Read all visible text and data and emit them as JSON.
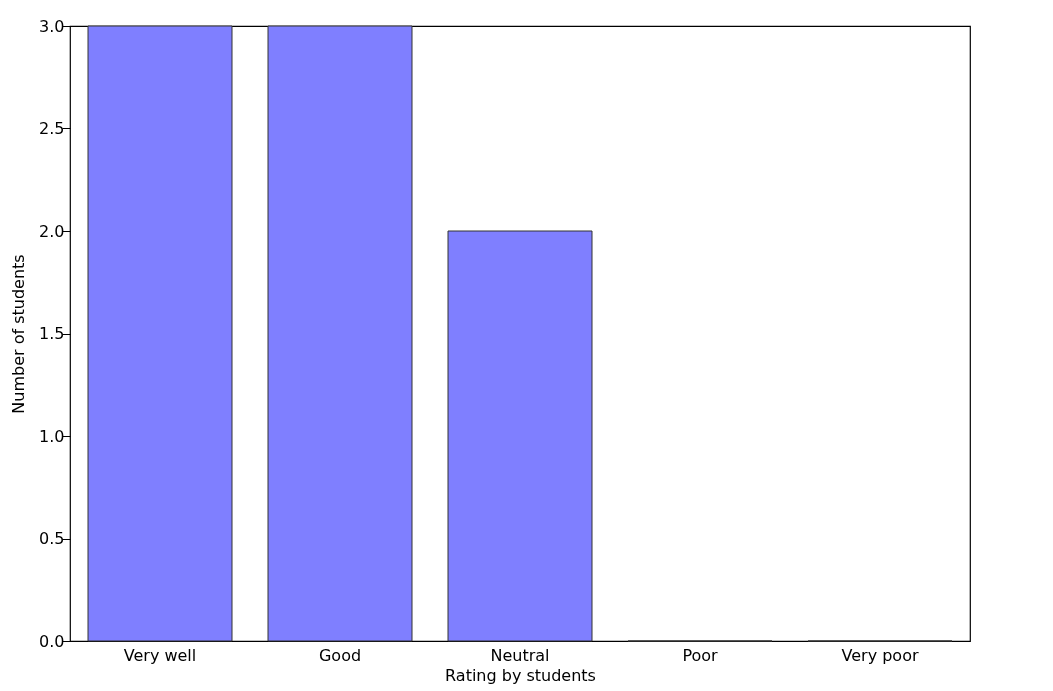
{
  "chart_data": {
    "type": "bar",
    "xlabel": "Rating by students",
    "ylabel": "Number of students",
    "categories": [
      "Very well",
      "Good",
      "Neutral",
      "Poor",
      "Very poor"
    ],
    "values": [
      3,
      3,
      2,
      0,
      0
    ],
    "color": "#7f7fff",
    "ylim": [
      0,
      3
    ],
    "yticks": [
      {
        "value": 0,
        "label": "0.0"
      },
      {
        "value": 0.5,
        "label": "0.5"
      },
      {
        "value": 1,
        "label": "1.0"
      },
      {
        "value": 1.5,
        "label": "1.5"
      },
      {
        "value": 2,
        "label": "2.0"
      },
      {
        "value": 2.5,
        "label": "2.5"
      },
      {
        "value": 3,
        "label": "3.0"
      }
    ],
    "grid": false
  }
}
